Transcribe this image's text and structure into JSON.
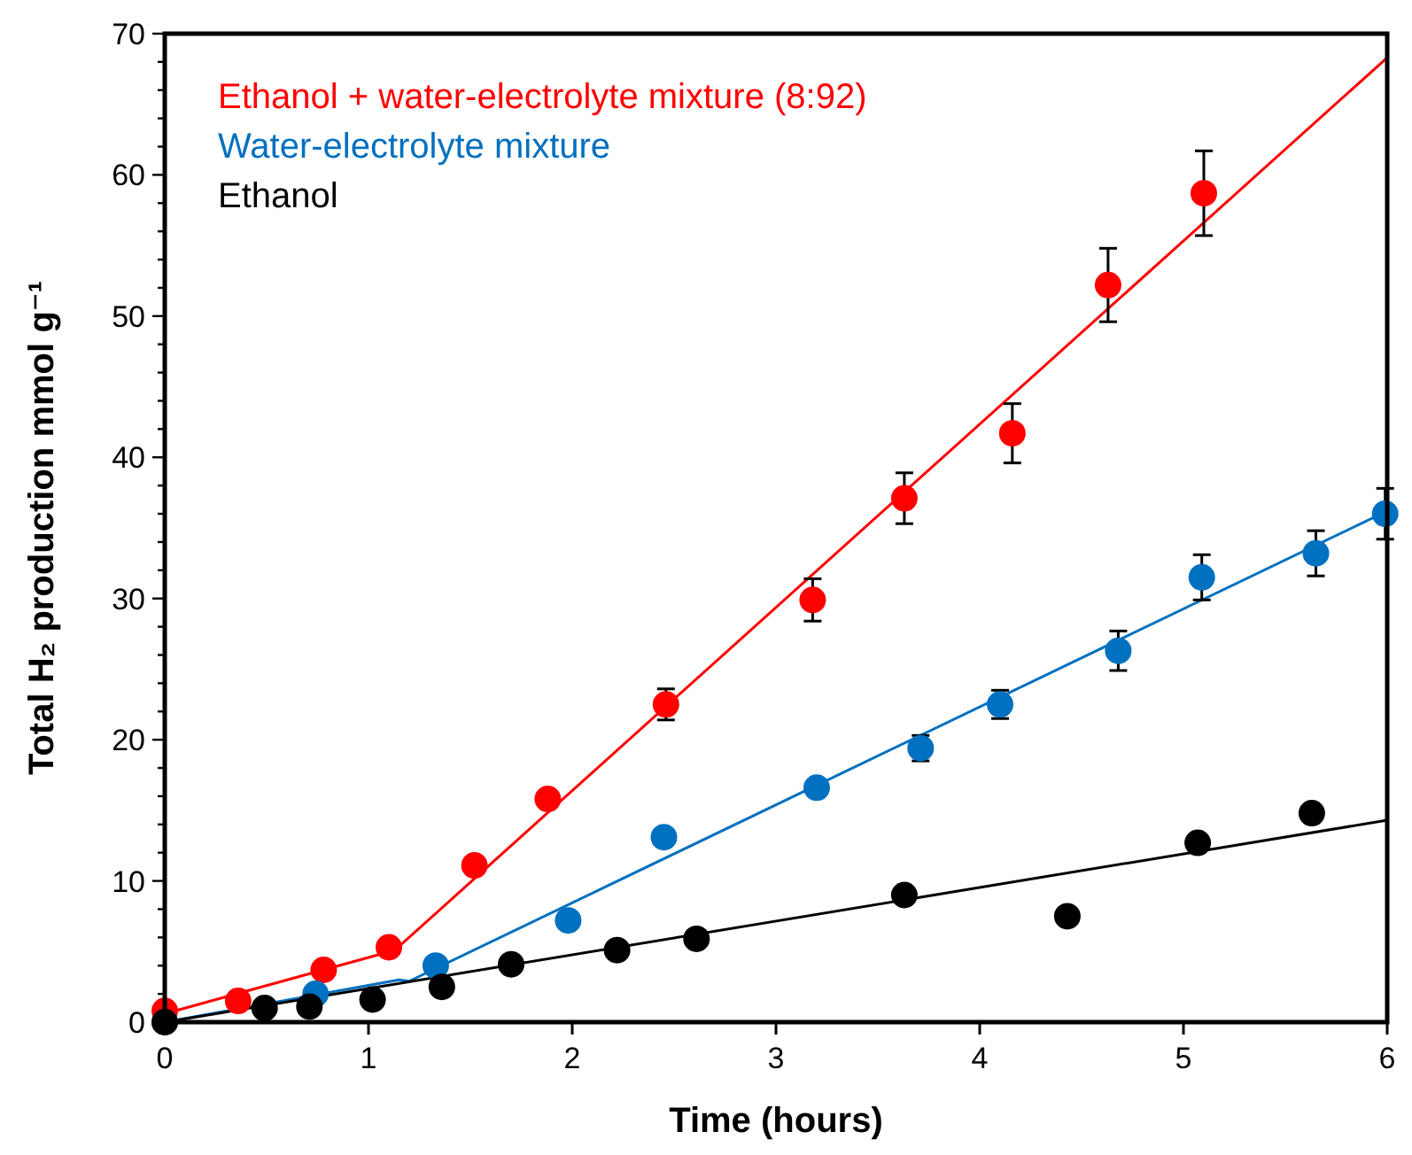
{
  "chart_data": {
    "type": "scatter",
    "xlabel": "Time (hours)",
    "ylabel": "Total H₂ production mmol g⁻¹",
    "xlim": [
      0,
      6
    ],
    "xticks": [
      0,
      1,
      2,
      3,
      4,
      5,
      6
    ],
    "ylim": [
      0,
      70
    ],
    "yticks": [
      0,
      {
        "value": 2,
        "label": null
      },
      {
        "value": 4,
        "label": null
      },
      {
        "value": 6,
        "label": null
      },
      {
        "value": 8,
        "label": null
      },
      10,
      {
        "value": 12,
        "label": null
      },
      {
        "value": 14,
        "label": null
      },
      {
        "value": 16,
        "label": null
      },
      {
        "value": 18,
        "label": null
      },
      20,
      {
        "value": 22,
        "label": null
      },
      {
        "value": 24,
        "label": null
      },
      {
        "value": 26,
        "label": null
      },
      {
        "value": 28,
        "label": null
      },
      30,
      {
        "value": 32,
        "label": null
      },
      {
        "value": 34,
        "label": null
      },
      {
        "value": 36,
        "label": null
      },
      {
        "value": 38,
        "label": null
      },
      40,
      {
        "value": 42,
        "label": null
      },
      {
        "value": 44,
        "label": null
      },
      {
        "value": 46,
        "label": null
      },
      {
        "value": 48,
        "label": null
      },
      50,
      {
        "value": 52,
        "label": null
      },
      {
        "value": 54,
        "label": null
      },
      {
        "value": 56,
        "label": null
      },
      {
        "value": 58,
        "label": null
      },
      60,
      {
        "value": 62,
        "label": null
      },
      {
        "value": 64,
        "label": null
      },
      {
        "value": 66,
        "label": null
      },
      {
        "value": 68,
        "label": null
      },
      70
    ],
    "grid": false,
    "legend": "top left",
    "series": [
      {
        "name": "Ethanol + water-electrolyte mixture (8:92)",
        "marker": "circle",
        "color": "#ff0000",
        "x": [
          0,
          0.36,
          0.78,
          1.1,
          1.52,
          1.88,
          2.46,
          3.18,
          3.63,
          4.16,
          4.63,
          5.1
        ],
        "values": [
          0.8,
          1.5,
          3.7,
          5.3,
          11.1,
          15.8,
          22.5,
          29.9,
          37.1,
          41.7,
          52.2,
          58.7
        ],
        "errors": [
          null,
          null,
          null,
          null,
          null,
          null,
          1.1,
          1.5,
          1.8,
          2.1,
          2.6,
          3.0
        ]
      },
      {
        "name": "Water-electrolyte mixture",
        "marker": "circle",
        "color": "#0070c0",
        "x": [
          0,
          0.74,
          1.33,
          1.98,
          2.45,
          3.2,
          3.71,
          4.1,
          4.68,
          5.09,
          5.65,
          5.99
        ],
        "values": [
          0,
          2.0,
          4.0,
          7.2,
          13.1,
          16.6,
          19.4,
          22.5,
          26.3,
          31.5,
          33.2,
          36.0
        ],
        "errors": [
          null,
          null,
          null,
          null,
          null,
          null,
          0.9,
          1.0,
          1.4,
          1.6,
          1.6,
          1.8
        ]
      },
      {
        "name": "Ethanol",
        "marker": "circle",
        "color": "#000000",
        "x": [
          0,
          0.49,
          0.71,
          1.02,
          1.36,
          1.7,
          2.22,
          2.61,
          3.63,
          4.43,
          5.07,
          5.63
        ],
        "values": [
          0,
          1.0,
          1.1,
          1.6,
          2.5,
          4.1,
          5.1,
          5.9,
          9.0,
          7.5,
          12.7,
          14.8
        ]
      },
      {
        "type": "line",
        "marker": "none",
        "color": "#ff0000",
        "x": [
          0,
          1.13,
          6
        ],
        "values": [
          0.6,
          5.1,
          68.3
        ]
      },
      {
        "type": "line",
        "marker": "none",
        "color": "#0070c0",
        "x": [
          0,
          1.15,
          1.2,
          6
        ],
        "values": [
          0,
          3.0,
          2.9,
          36.2
        ]
      },
      {
        "type": "line",
        "marker": "none",
        "color": "#000000",
        "x": [
          0,
          6
        ],
        "values": [
          0,
          14.3
        ]
      }
    ]
  }
}
